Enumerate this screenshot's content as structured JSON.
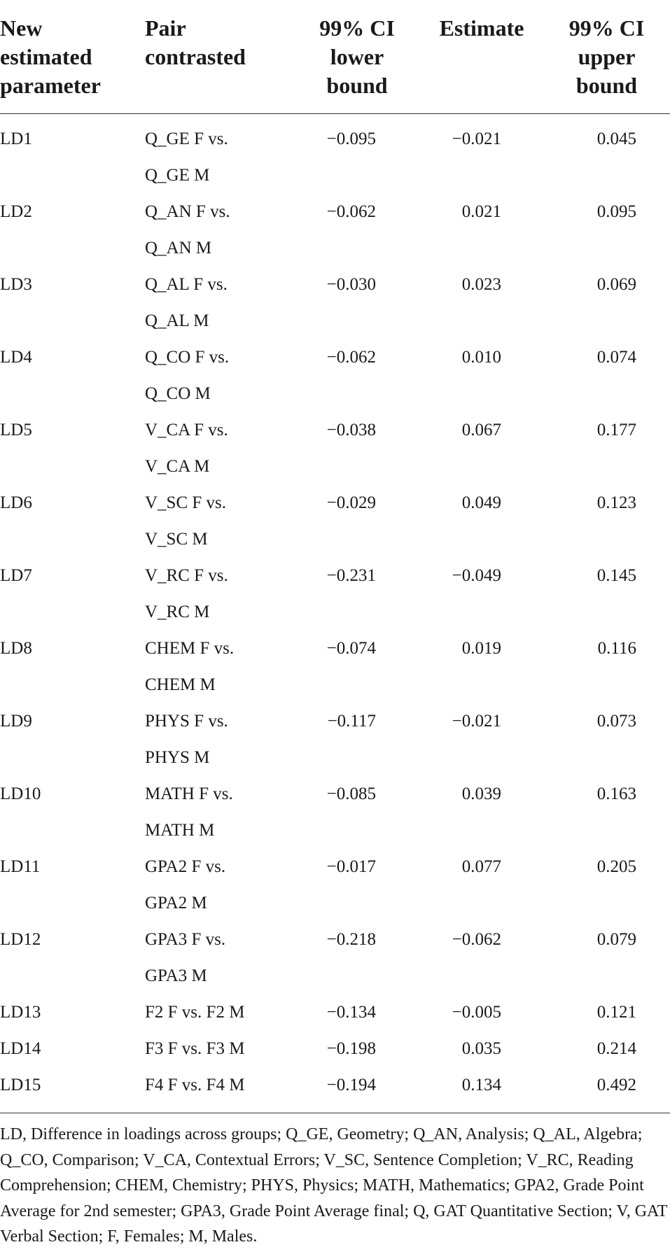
{
  "headers": [
    [
      "New",
      "estimated",
      "parameter"
    ],
    [
      "Pair",
      "contrasted"
    ],
    [
      "99% CI",
      "lower",
      "bound"
    ],
    [
      "Estimate"
    ],
    [
      "99% CI",
      "upper",
      "bound"
    ]
  ],
  "rows": [
    {
      "param": "LD1",
      "pair": [
        "Q_GE F vs.",
        "Q_GE M"
      ],
      "lower": "−0.095",
      "estimate": "−0.021",
      "upper": "0.045"
    },
    {
      "param": "LD2",
      "pair": [
        "Q_AN F vs.",
        "Q_AN M"
      ],
      "lower": "−0.062",
      "estimate": "0.021",
      "upper": "0.095"
    },
    {
      "param": "LD3",
      "pair": [
        "Q_AL F vs.",
        "Q_AL M"
      ],
      "lower": "−0.030",
      "estimate": "0.023",
      "upper": "0.069"
    },
    {
      "param": "LD4",
      "pair": [
        "Q_CO F vs.",
        "Q_CO M"
      ],
      "lower": "−0.062",
      "estimate": "0.010",
      "upper": "0.074"
    },
    {
      "param": "LD5",
      "pair": [
        "V_CA F vs.",
        "V_CA M"
      ],
      "lower": "−0.038",
      "estimate": "0.067",
      "upper": "0.177"
    },
    {
      "param": "LD6",
      "pair": [
        "V_SC F vs.",
        "V_SC M"
      ],
      "lower": "−0.029",
      "estimate": "0.049",
      "upper": "0.123"
    },
    {
      "param": "LD7",
      "pair": [
        "V_RC F vs.",
        "V_RC M"
      ],
      "lower": "−0.231",
      "estimate": "−0.049",
      "upper": "0.145"
    },
    {
      "param": "LD8",
      "pair": [
        "CHEM F vs.",
        "CHEM M"
      ],
      "lower": "−0.074",
      "estimate": "0.019",
      "upper": "0.116"
    },
    {
      "param": "LD9",
      "pair": [
        "PHYS F vs.",
        "PHYS M"
      ],
      "lower": "−0.117",
      "estimate": "−0.021",
      "upper": "0.073"
    },
    {
      "param": "LD10",
      "pair": [
        "MATH F vs.",
        "MATH M"
      ],
      "lower": "−0.085",
      "estimate": "0.039",
      "upper": "0.163"
    },
    {
      "param": "LD11",
      "pair": [
        "GPA2 F vs.",
        "GPA2 M"
      ],
      "lower": "−0.017",
      "estimate": "0.077",
      "upper": "0.205"
    },
    {
      "param": "LD12",
      "pair": [
        "GPA3 F vs.",
        "GPA3 M"
      ],
      "lower": "−0.218",
      "estimate": "−0.062",
      "upper": "0.079"
    },
    {
      "param": "LD13",
      "pair": [
        "F2 F vs. F2 M"
      ],
      "lower": "−0.134",
      "estimate": "−0.005",
      "upper": "0.121"
    },
    {
      "param": "LD14",
      "pair": [
        "F3 F vs. F3 M"
      ],
      "lower": "−0.198",
      "estimate": "0.035",
      "upper": "0.214"
    },
    {
      "param": "LD15",
      "pair": [
        "F4 F vs. F4 M"
      ],
      "lower": "−0.194",
      "estimate": "0.134",
      "upper": "0.492"
    }
  ],
  "footnote": "LD, Difference in loadings across groups; Q_GE, Geometry; Q_AN, Analysis; Q_AL, Algebra; Q_CO, Comparison; V_CA, Contextual Errors; V_SC, Sentence Completion; V_RC, Reading Comprehension; CHEM, Chemistry; PHYS, Physics; MATH, Mathematics; GPA2, Grade Point Average for 2nd semester; GPA3, Grade Point Average final; Q, GAT Quantitative Section; V, GAT Verbal Section; F, Females; M, Males."
}
